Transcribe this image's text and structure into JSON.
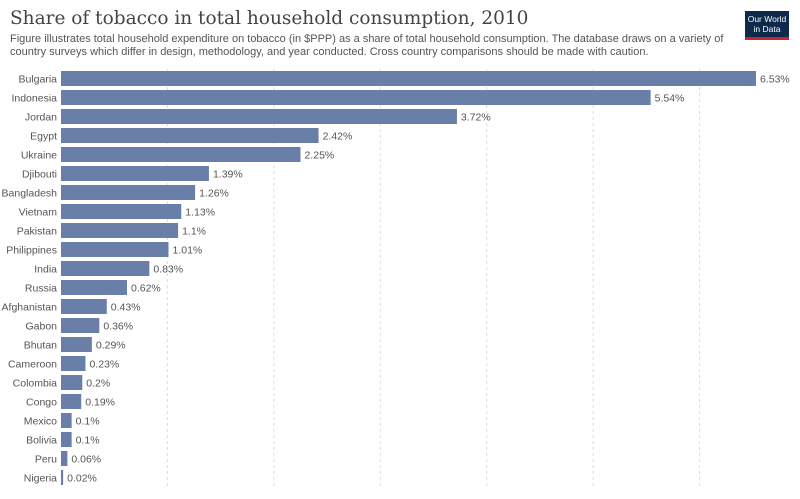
{
  "header": {
    "title": "Share of tobacco in total household consumption, 2010",
    "subtitle": "Figure illustrates total household expenditure on tobacco (in $PPP) as a share of total household consumption. The database draws on a variety of country surveys which differ in design, methodology, and year conducted. Cross country comparisons should be made with caution.",
    "logo_line1": "Our World",
    "logo_line2": "in Data"
  },
  "colors": {
    "bar": "#6a7fa8",
    "grid": "#dddddd",
    "logo_bg": "#0d2a4d",
    "logo_accent": "#c3282e"
  },
  "chart_data": {
    "type": "bar",
    "orientation": "horizontal",
    "xlim": [
      0,
      6.53
    ],
    "grid": "vertical-dashed",
    "value_suffix": "%",
    "categories": [
      "Bulgaria",
      "Indonesia",
      "Jordan",
      "Egypt",
      "Ukraine",
      "Djibouti",
      "Bangladesh",
      "Vietnam",
      "Pakistan",
      "Philippines",
      "India",
      "Russia",
      "Afghanistan",
      "Gabon",
      "Bhutan",
      "Cameroon",
      "Colombia",
      "Congo",
      "Mexico",
      "Bolivia",
      "Peru",
      "Nigeria"
    ],
    "values": [
      6.53,
      5.54,
      3.72,
      2.42,
      2.25,
      1.39,
      1.26,
      1.13,
      1.1,
      1.01,
      0.83,
      0.62,
      0.43,
      0.36,
      0.29,
      0.23,
      0.2,
      0.19,
      0.1,
      0.1,
      0.06,
      0.02
    ],
    "labels": [
      "6.53%",
      "5.54%",
      "3.72%",
      "2.42%",
      "2.25%",
      "1.39%",
      "1.26%",
      "1.13%",
      "1.1%",
      "1.01%",
      "0.83%",
      "0.62%",
      "0.43%",
      "0.36%",
      "0.29%",
      "0.23%",
      "0.2%",
      "0.19%",
      "0.1%",
      "0.1%",
      "0.06%",
      "0.02%"
    ]
  }
}
